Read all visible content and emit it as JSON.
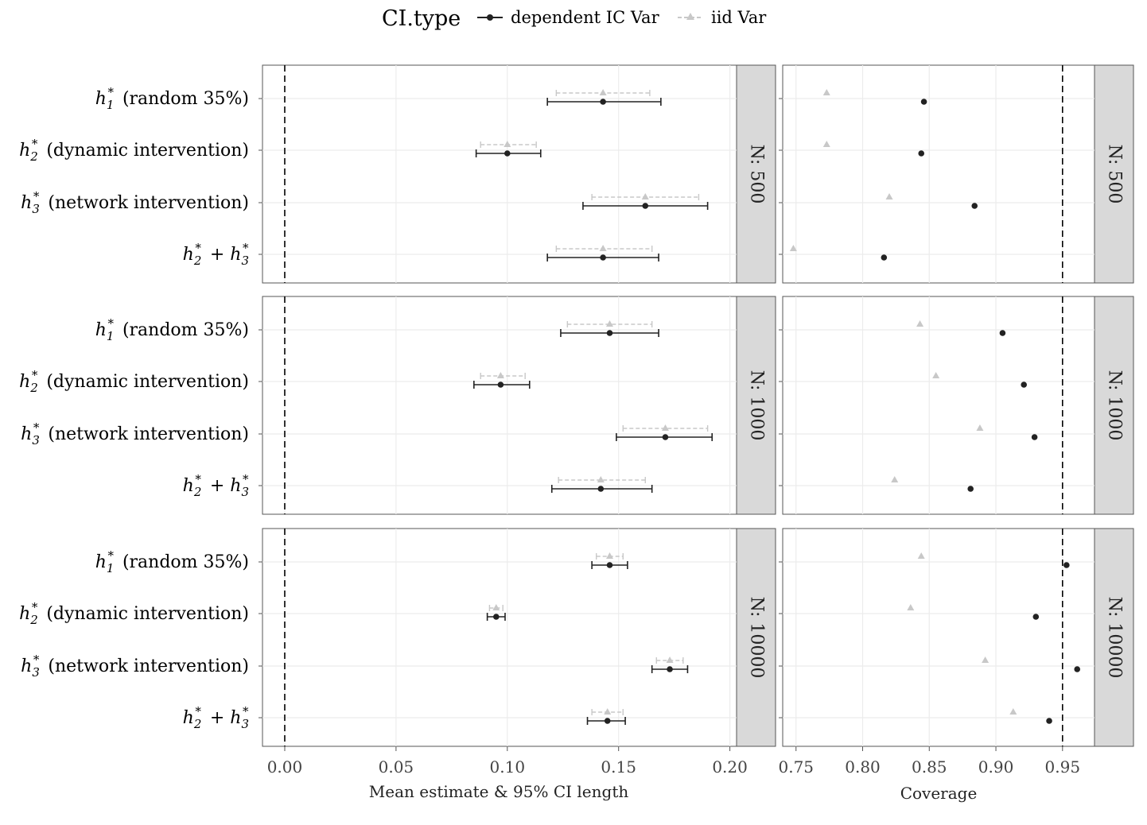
{
  "legend": {
    "title": "CI.type",
    "items": [
      {
        "label": "dependent IC Var",
        "color": "#222222",
        "marker": "circle"
      },
      {
        "label": "iid Var",
        "color": "#c8c8c8",
        "marker": "triangle"
      }
    ]
  },
  "estimates": [
    {
      "label": "h1* (random 35%)",
      "math_sub": "1",
      "math_sup": "*",
      "text": "(random 35%)"
    },
    {
      "label": "h2* (dynamic intervention)",
      "math_sub": "2",
      "math_sup": "*",
      "text": "(dynamic intervention)"
    },
    {
      "label": "h3* (network intervention)",
      "math_sub": "3",
      "math_sup": "*",
      "text": "(network intervention)"
    },
    {
      "label": "h2* + h3*",
      "math_sub": "2",
      "math_sup": "*",
      "text": "+",
      "math2_sub": "3"
    }
  ],
  "chart_data": [
    {
      "type": "scatter",
      "name": "mean-estimate-ci",
      "xlabel": "Mean estimate & 95% CI length",
      "xlim": [
        -0.01,
        0.203
      ],
      "xticks": [
        0.0,
        0.05,
        0.1,
        0.15,
        0.2
      ],
      "xtick_labels": [
        "0.00",
        "0.05",
        "0.10",
        "0.15",
        "0.20"
      ],
      "reference_line": 0.0,
      "panels": [
        {
          "strip": "N: 500",
          "dependent": [
            {
              "est": 0.143,
              "lo": 0.118,
              "hi": 0.169
            },
            {
              "est": 0.1,
              "lo": 0.086,
              "hi": 0.115
            },
            {
              "est": 0.162,
              "lo": 0.134,
              "hi": 0.19
            },
            {
              "est": 0.143,
              "lo": 0.118,
              "hi": 0.168
            }
          ],
          "iid": [
            {
              "est": 0.143,
              "lo": 0.122,
              "hi": 0.164
            },
            {
              "est": 0.1,
              "lo": 0.088,
              "hi": 0.113
            },
            {
              "est": 0.162,
              "lo": 0.138,
              "hi": 0.186
            },
            {
              "est": 0.143,
              "lo": 0.122,
              "hi": 0.165
            }
          ]
        },
        {
          "strip": "N: 1000",
          "dependent": [
            {
              "est": 0.146,
              "lo": 0.124,
              "hi": 0.168
            },
            {
              "est": 0.097,
              "lo": 0.085,
              "hi": 0.11
            },
            {
              "est": 0.171,
              "lo": 0.149,
              "hi": 0.192
            },
            {
              "est": 0.142,
              "lo": 0.12,
              "hi": 0.165
            }
          ],
          "iid": [
            {
              "est": 0.146,
              "lo": 0.127,
              "hi": 0.165
            },
            {
              "est": 0.097,
              "lo": 0.088,
              "hi": 0.108
            },
            {
              "est": 0.171,
              "lo": 0.152,
              "hi": 0.19
            },
            {
              "est": 0.142,
              "lo": 0.123,
              "hi": 0.162
            }
          ]
        },
        {
          "strip": "N: 10000",
          "dependent": [
            {
              "est": 0.146,
              "lo": 0.138,
              "hi": 0.154
            },
            {
              "est": 0.095,
              "lo": 0.091,
              "hi": 0.099
            },
            {
              "est": 0.173,
              "lo": 0.165,
              "hi": 0.181
            },
            {
              "est": 0.145,
              "lo": 0.136,
              "hi": 0.153
            }
          ],
          "iid": [
            {
              "est": 0.146,
              "lo": 0.14,
              "hi": 0.152
            },
            {
              "est": 0.095,
              "lo": 0.092,
              "hi": 0.098
            },
            {
              "est": 0.173,
              "lo": 0.167,
              "hi": 0.179
            },
            {
              "est": 0.145,
              "lo": 0.138,
              "hi": 0.152
            }
          ]
        }
      ]
    },
    {
      "type": "scatter",
      "name": "coverage",
      "xlabel": "Coverage",
      "xlim": [
        0.74,
        0.974
      ],
      "xticks": [
        0.75,
        0.8,
        0.85,
        0.9,
        0.95
      ],
      "xtick_labels": [
        "0.75",
        "0.80",
        "0.85",
        "0.90",
        "0.95"
      ],
      "reference_line": 0.95,
      "panels": [
        {
          "strip": "N: 500",
          "dependent": [
            0.846,
            0.844,
            0.884,
            0.816
          ],
          "iid": [
            0.773,
            0.773,
            0.82,
            0.748
          ]
        },
        {
          "strip": "N: 1000",
          "dependent": [
            0.905,
            0.921,
            0.929,
            0.881
          ],
          "iid": [
            0.843,
            0.855,
            0.888,
            0.824
          ]
        },
        {
          "strip": "N: 10000",
          "dependent": [
            0.953,
            0.93,
            0.961,
            0.94
          ],
          "iid": [
            0.844,
            0.836,
            0.892,
            0.913
          ]
        }
      ]
    }
  ]
}
